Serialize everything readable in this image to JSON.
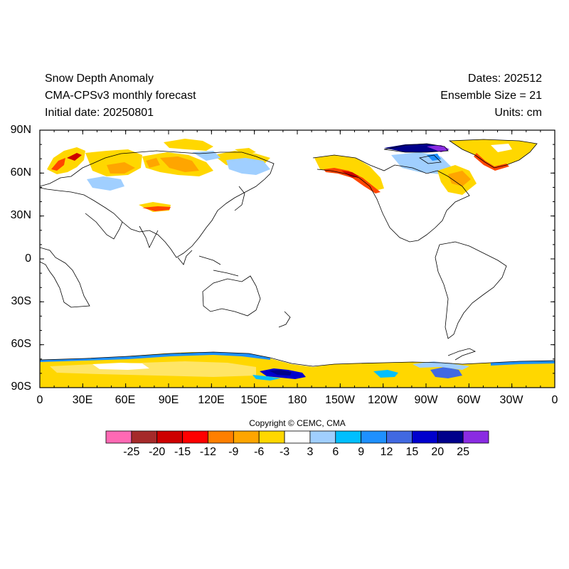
{
  "title_left": [
    "Snow Depth Anomaly",
    "CMA-CPSv3 monthly forecast",
    "Initial date: 20250801"
  ],
  "title_right": [
    "Dates: 202512",
    "Ensemble Size = 21",
    "Units: cm"
  ],
  "axes": {
    "lat_labels": [
      "90N",
      "60N",
      "30N",
      "0",
      "30S",
      "60S",
      "90S"
    ],
    "lon_labels": [
      "0",
      "30E",
      "60E",
      "90E",
      "120E",
      "150E",
      "180",
      "150W",
      "120W",
      "90W",
      "60W",
      "30W",
      "0"
    ]
  },
  "copyright": "Copyright © CEMC, CMA",
  "colorbar": {
    "colors": [
      "#ff69b4",
      "#a52a2a",
      "#cd0000",
      "#ff0000",
      "#ff7f00",
      "#ffa500",
      "#ffd700",
      "#ffffff",
      "#a0cfff",
      "#00bfff",
      "#1e90ff",
      "#4169e1",
      "#0000cd",
      "#00008b",
      "#8a2be2"
    ],
    "labels": [
      "-25",
      "-20",
      "-15",
      "-12",
      "-9",
      "-6",
      "-3",
      "3",
      "6",
      "9",
      "12",
      "15",
      "20",
      "25"
    ]
  }
}
